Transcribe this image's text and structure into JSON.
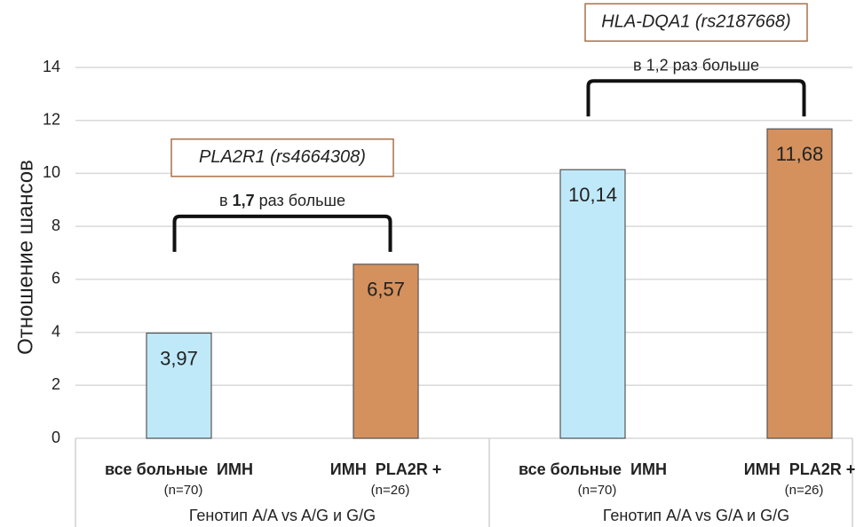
{
  "chart_data": {
    "type": "bar",
    "y_label": "Отношение шансов",
    "categories": [
      "все больные  ИМН",
      "ИМН  PLA2R +",
      "все больные  ИМН",
      "ИМН  PLA2R +"
    ],
    "category_notes": [
      "(n=70)",
      "(n=26)",
      "(n=70)",
      "(n=26)"
    ],
    "values": [
      3.97,
      6.57,
      10.14,
      11.68
    ],
    "value_labels": [
      "3,97",
      "6,57",
      "10,14",
      "11,68"
    ],
    "colors": [
      "#bfe9f9",
      "#d4915e",
      "#bfe9f9",
      "#d4915e"
    ],
    "groups": [
      {
        "label": "Генотип A/A vs A/G и G/G",
        "annotation": "PLA2R1 (rs4664308)",
        "comparison": [
          "в ",
          "1,7",
          " раз больше"
        ]
      },
      {
        "label": "Генотип A/A vs G/A и G/G",
        "annotation": "HLA-DQA1 (rs2187668)",
        "comparison": [
          "в 1,2 раз больше"
        ]
      }
    ],
    "ylim": [
      0,
      14
    ],
    "yticks": [
      0,
      2,
      4,
      6,
      8,
      10,
      12,
      14
    ],
    "grid": true
  }
}
